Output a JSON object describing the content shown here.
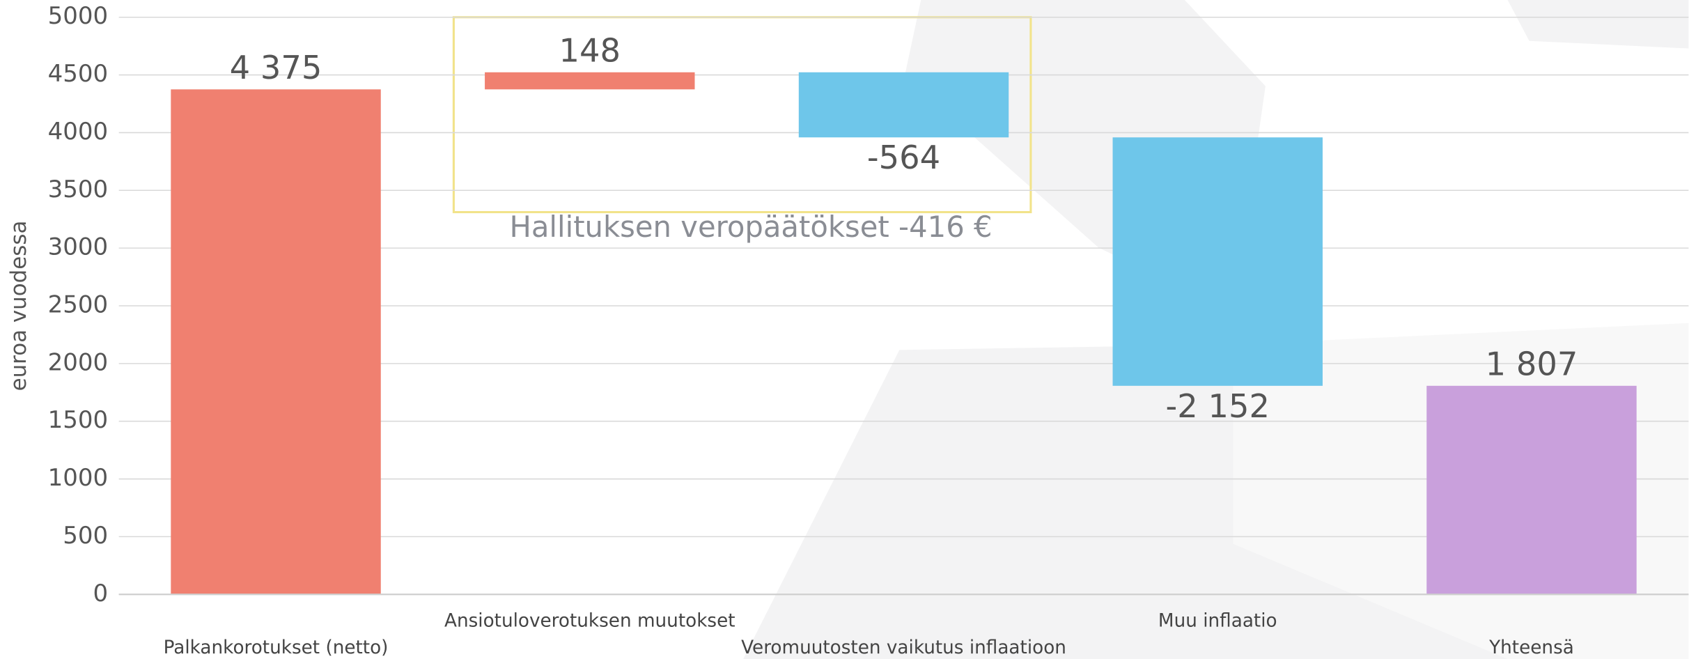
{
  "chart_data": {
    "type": "waterfall",
    "y_label": "euroa vuodessa",
    "categories": [
      "Palkankorotukset (netto)",
      "Ansiotuloverotuksen muutokset",
      "Veromuutosten vaikutus inflaatioon",
      "Muu inflaatio",
      "Yhteensä"
    ],
    "values": [
      4375,
      148,
      -564,
      -2152,
      1807
    ],
    "value_labels": [
      "4 375",
      "148",
      "-564",
      "-2 152",
      "1 807"
    ],
    "is_total": [
      false,
      false,
      false,
      false,
      true
    ],
    "colors": [
      "#f08070",
      "#f08070",
      "#6ec6ea",
      "#6ec6ea",
      "#c9a0dc"
    ],
    "annotation": "Hallituksen veropäätökset -416 €",
    "ylim": [
      0,
      5000
    ],
    "yticks": [
      0,
      500,
      1000,
      1500,
      2000,
      2500,
      3000,
      3500,
      4000,
      4500,
      5000
    ],
    "grid": true
  }
}
